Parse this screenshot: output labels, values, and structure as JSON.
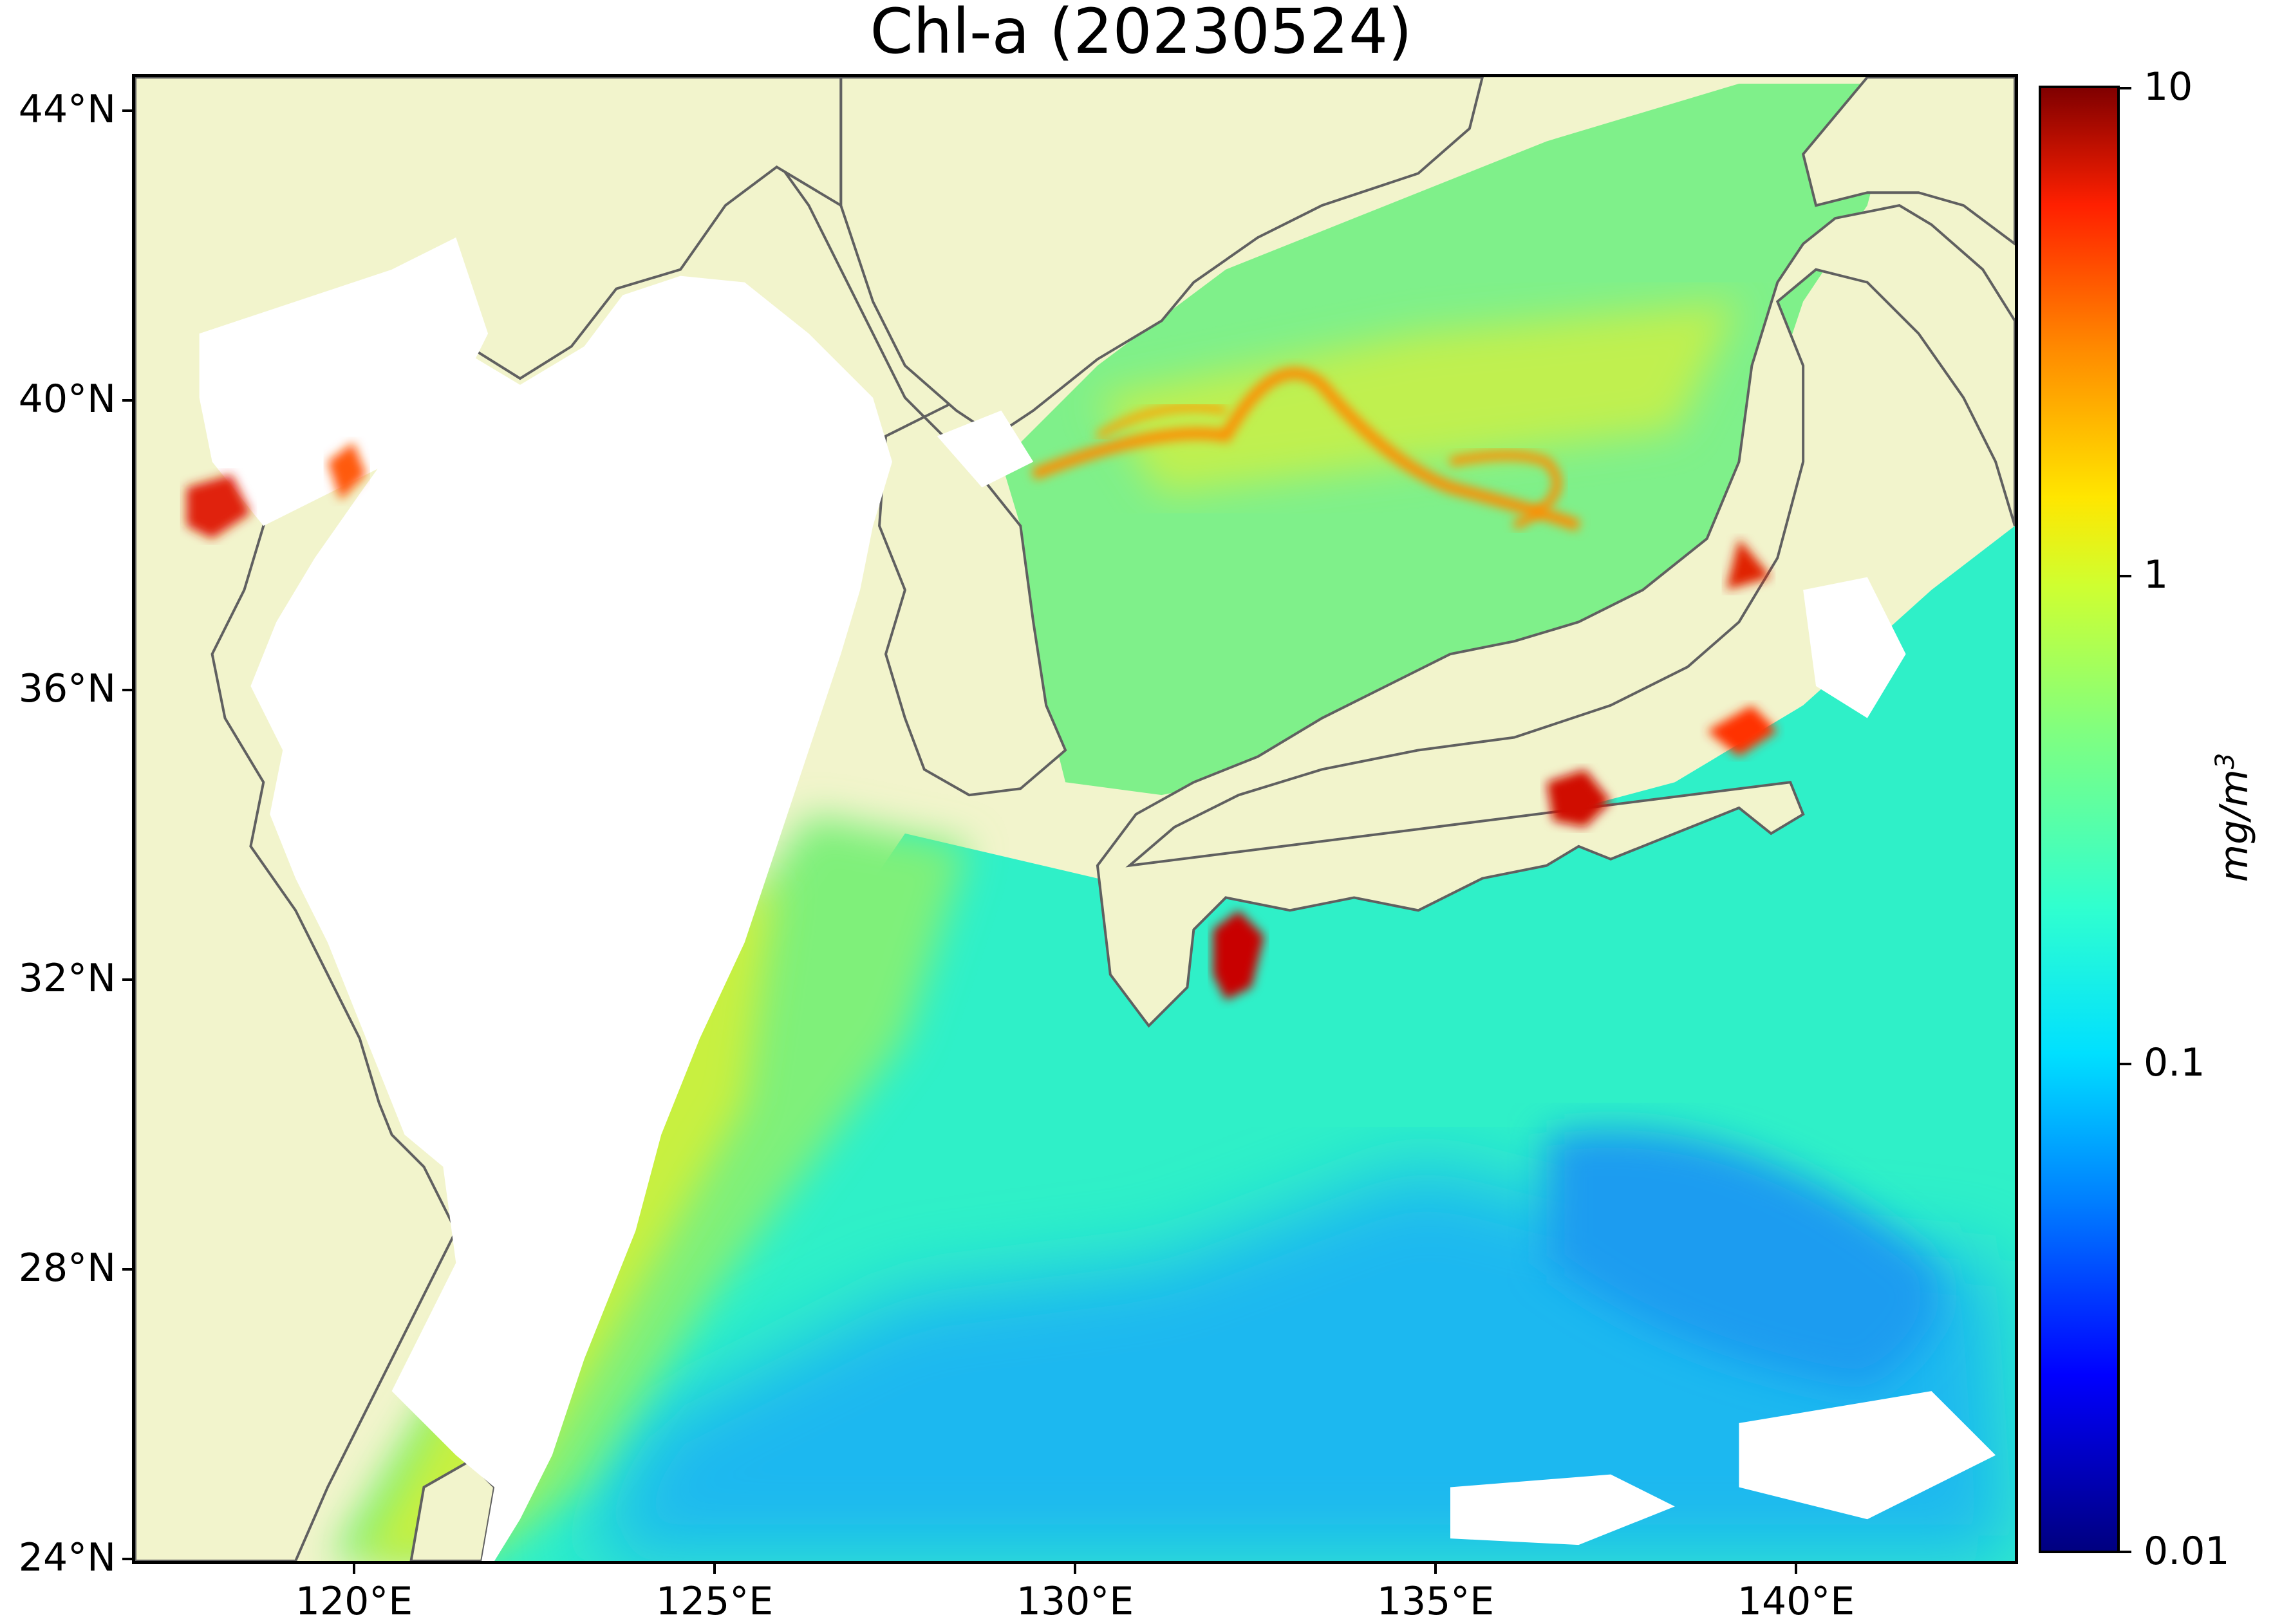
{
  "title": "Chl-a (20230524)",
  "latitude_labels": [
    "44°N",
    "40°N",
    "36°N",
    "32°N",
    "28°N",
    "24°N"
  ],
  "longitude_labels": [
    "120°E",
    "125°E",
    "130°E",
    "135°E",
    "140°E"
  ],
  "colorbar": {
    "tick_labels": [
      "10",
      "1",
      "0.1",
      "0.01"
    ],
    "unit_label": "mg/m",
    "unit_exponent": "3",
    "scale": "log",
    "range": [
      0.01,
      10
    ]
  },
  "colors": {
    "land": "#f2f4cc",
    "coastline": "#606060",
    "no_data": "#ffffff"
  }
}
